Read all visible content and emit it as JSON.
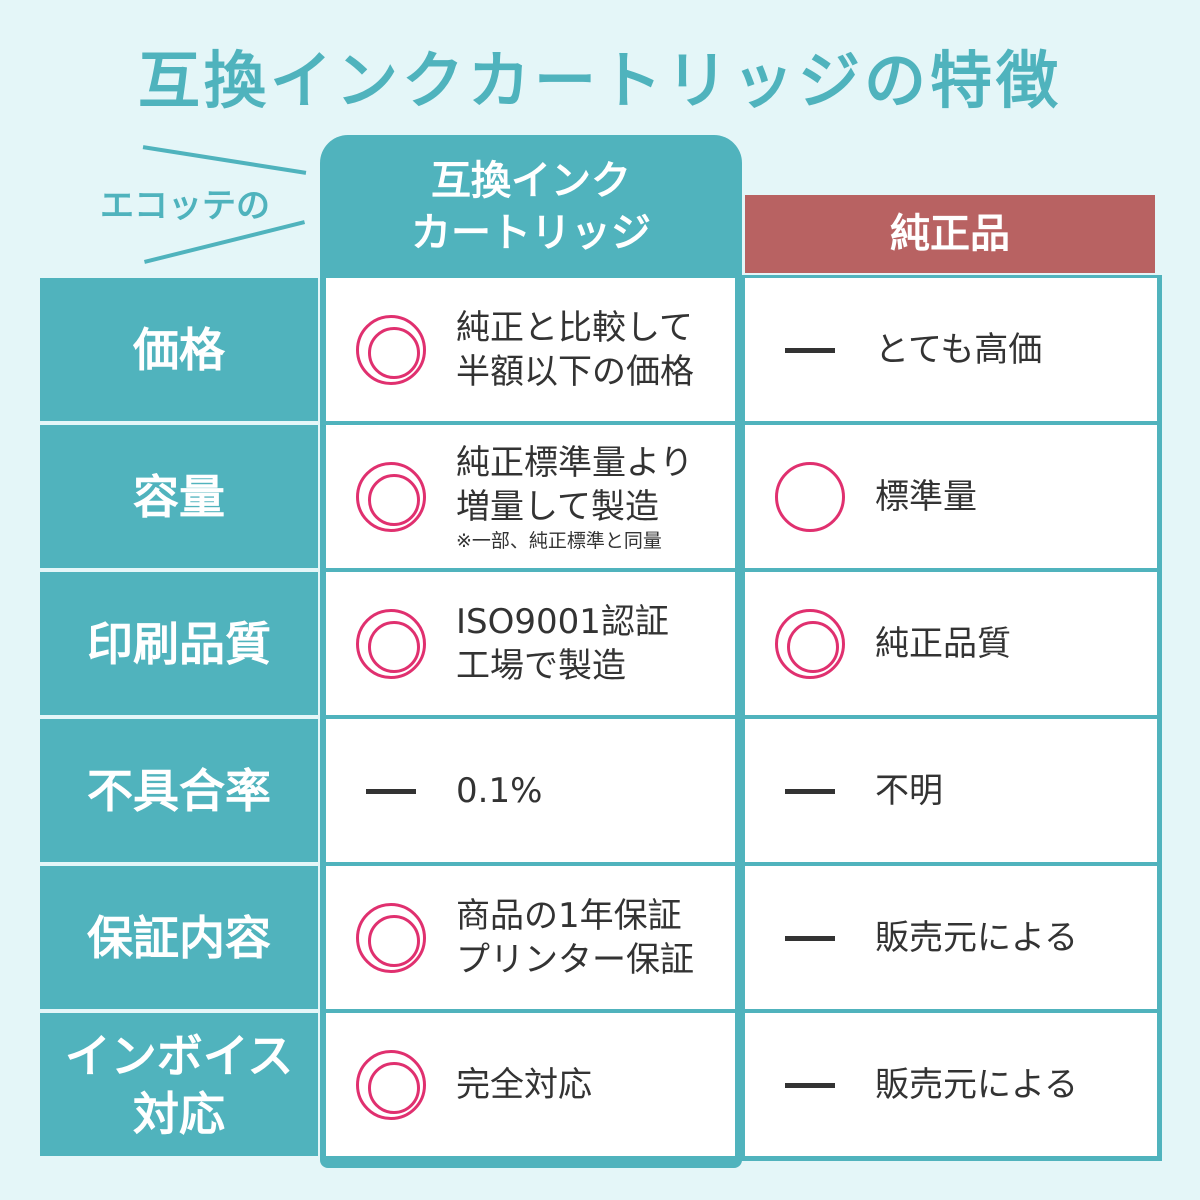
{
  "title": "互換インクカートリッジの特徴",
  "brand": "エコッテの",
  "header": {
    "mid_line1": "互換インク",
    "mid_line2": "カートリッジ",
    "right": "純正品"
  },
  "colors": {
    "teal": "#50b3bd",
    "red": "#b86262",
    "mark": "#e0306f"
  },
  "rows": [
    {
      "label": "価格",
      "mid": {
        "symbol": "double-circle",
        "line1": "純正と比較して",
        "line2": "半額以下の価格"
      },
      "right": {
        "symbol": "dash",
        "text": "とても高価"
      }
    },
    {
      "label": "容量",
      "mid": {
        "symbol": "double-circle",
        "line1": "純正標準量より",
        "line2": "増量して製造",
        "note": "※一部、純正標準と同量"
      },
      "right": {
        "symbol": "circle",
        "text": "標準量"
      }
    },
    {
      "label": "印刷品質",
      "mid": {
        "symbol": "double-circle",
        "line1": "ISO9001認証",
        "line2": "工場で製造"
      },
      "right": {
        "symbol": "double-circle",
        "text": "純正品質"
      }
    },
    {
      "label": "不具合率",
      "mid": {
        "symbol": "dash",
        "line1": "0.1%"
      },
      "right": {
        "symbol": "dash",
        "text": "不明"
      }
    },
    {
      "label": "保証内容",
      "mid": {
        "symbol": "double-circle",
        "line1": "商品の1年保証",
        "line2": "プリンター保証"
      },
      "right": {
        "symbol": "dash",
        "text": "販売元による"
      }
    },
    {
      "label_line1": "インボイス",
      "label_line2": "対応",
      "mid": {
        "symbol": "double-circle",
        "line1": "完全対応"
      },
      "right": {
        "symbol": "dash",
        "text": "販売元による"
      }
    }
  ]
}
